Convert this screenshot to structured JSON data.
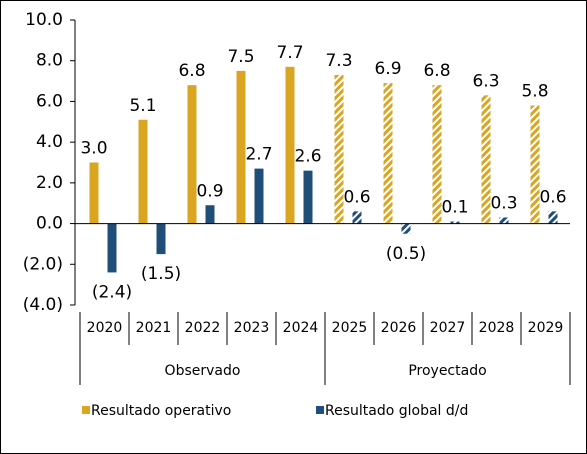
{
  "chart_data": {
    "type": "bar",
    "categories": [
      "2020",
      "2021",
      "2022",
      "2023",
      "2024",
      "2025",
      "2026",
      "2027",
      "2028",
      "2029"
    ],
    "groups": [
      {
        "label": "Observado",
        "span": 5,
        "hatched": false
      },
      {
        "label": "Proyectado",
        "span": 5,
        "hatched": true
      }
    ],
    "series": [
      {
        "name": "Resultado operativo",
        "color": "#DAA520",
        "values": [
          3.0,
          5.1,
          6.8,
          7.5,
          7.7,
          7.3,
          6.9,
          6.8,
          6.3,
          5.8
        ],
        "value_labels": [
          "3.0",
          "5.1",
          "6.8",
          "7.5",
          "7.7",
          "7.3",
          "6.9",
          "6.8",
          "6.3",
          "5.8"
        ]
      },
      {
        "name": "Resultado global d/d",
        "color": "#1F4E79",
        "values": [
          -2.4,
          -1.5,
          0.9,
          2.7,
          2.6,
          0.6,
          -0.5,
          0.1,
          0.3,
          0.6
        ],
        "value_labels": [
          "(2.4)",
          "(1.5)",
          "0.9",
          "2.7",
          "2.6",
          "0.6",
          "(0.5)",
          "0.1",
          "0.3",
          "0.6"
        ]
      }
    ],
    "ylim": [
      -4,
      10
    ],
    "yticks": [
      {
        "value": -4,
        "label": "(4.0)"
      },
      {
        "value": -2,
        "label": "(2.0)"
      },
      {
        "value": 0,
        "label": "0.0"
      },
      {
        "value": 2,
        "label": "2.0"
      },
      {
        "value": 4,
        "label": "4.0"
      },
      {
        "value": 6,
        "label": "6.0"
      },
      {
        "value": 8,
        "label": "8.0"
      },
      {
        "value": 10,
        "label": "10.0"
      }
    ],
    "legend": "bottom-left"
  }
}
